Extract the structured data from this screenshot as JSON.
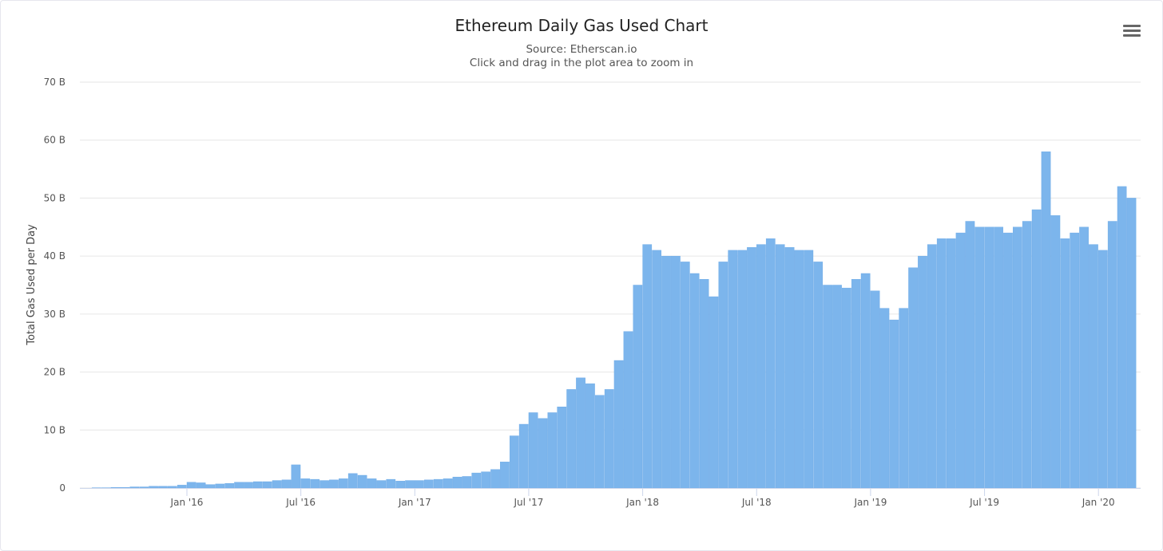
{
  "header": {
    "title": "Ethereum Daily Gas Used Chart",
    "subtitle": "Source: Etherscan.io",
    "hint": "Click and drag in the plot area to zoom in",
    "menu_icon": "hamburger-menu-icon"
  },
  "colors": {
    "bar": "#7cb5ec",
    "grid": "#e6e6e6"
  },
  "chart_data": {
    "type": "bar",
    "title": "Ethereum Daily Gas Used Chart",
    "subtitle": "Source: Etherscan.io",
    "xlabel": "",
    "ylabel": "Total Gas Used per Day",
    "ylim": [
      0,
      70
    ],
    "y_unit": "B",
    "y_ticks": [
      "0",
      "10 B",
      "20 B",
      "30 B",
      "40 B",
      "50 B",
      "60 B",
      "70 B"
    ],
    "y_tick_values": [
      0,
      10,
      20,
      30,
      40,
      50,
      60,
      70
    ],
    "x_ticks": [
      "Jan '16",
      "Jul '16",
      "Jan '17",
      "Jul '17",
      "Jan '18",
      "Jul '18",
      "Jan '19",
      "Jul '19",
      "Jan '20"
    ],
    "x_tick_dates": [
      "2016-01",
      "2016-07",
      "2017-01",
      "2017-07",
      "2018-01",
      "2018-07",
      "2019-01",
      "2019-07",
      "2020-01"
    ],
    "x_start": "2015-08",
    "interval": "semi-monthly (approximate aggregation of daily values)",
    "grid": true,
    "legend": "none",
    "values": [
      0.05,
      0.05,
      0.1,
      0.1,
      0.2,
      0.2,
      0.3,
      0.3,
      0.3,
      0.5,
      1.0,
      0.9,
      0.6,
      0.7,
      0.8,
      1.0,
      1.0,
      1.1,
      1.1,
      1.3,
      1.4,
      4.0,
      1.6,
      1.5,
      1.3,
      1.4,
      1.6,
      2.5,
      2.2,
      1.6,
      1.3,
      1.5,
      1.2,
      1.3,
      1.3,
      1.4,
      1.5,
      1.6,
      1.9,
      2.0,
      2.6,
      2.8,
      3.2,
      4.5,
      9,
      11,
      13,
      12,
      13,
      14,
      17,
      19,
      18,
      16,
      17,
      22,
      27,
      35,
      42,
      41,
      40,
      40,
      39,
      37,
      36,
      33,
      39,
      41,
      41,
      41.5,
      42,
      43,
      42,
      41.5,
      41,
      41,
      39,
      35,
      35,
      34.5,
      36,
      37,
      34,
      31,
      29,
      31,
      38,
      40,
      42,
      43,
      43,
      44,
      46,
      45,
      45,
      45,
      44,
      45,
      46,
      48,
      58,
      47,
      43,
      44,
      45,
      42,
      41,
      46,
      52,
      50
    ]
  }
}
